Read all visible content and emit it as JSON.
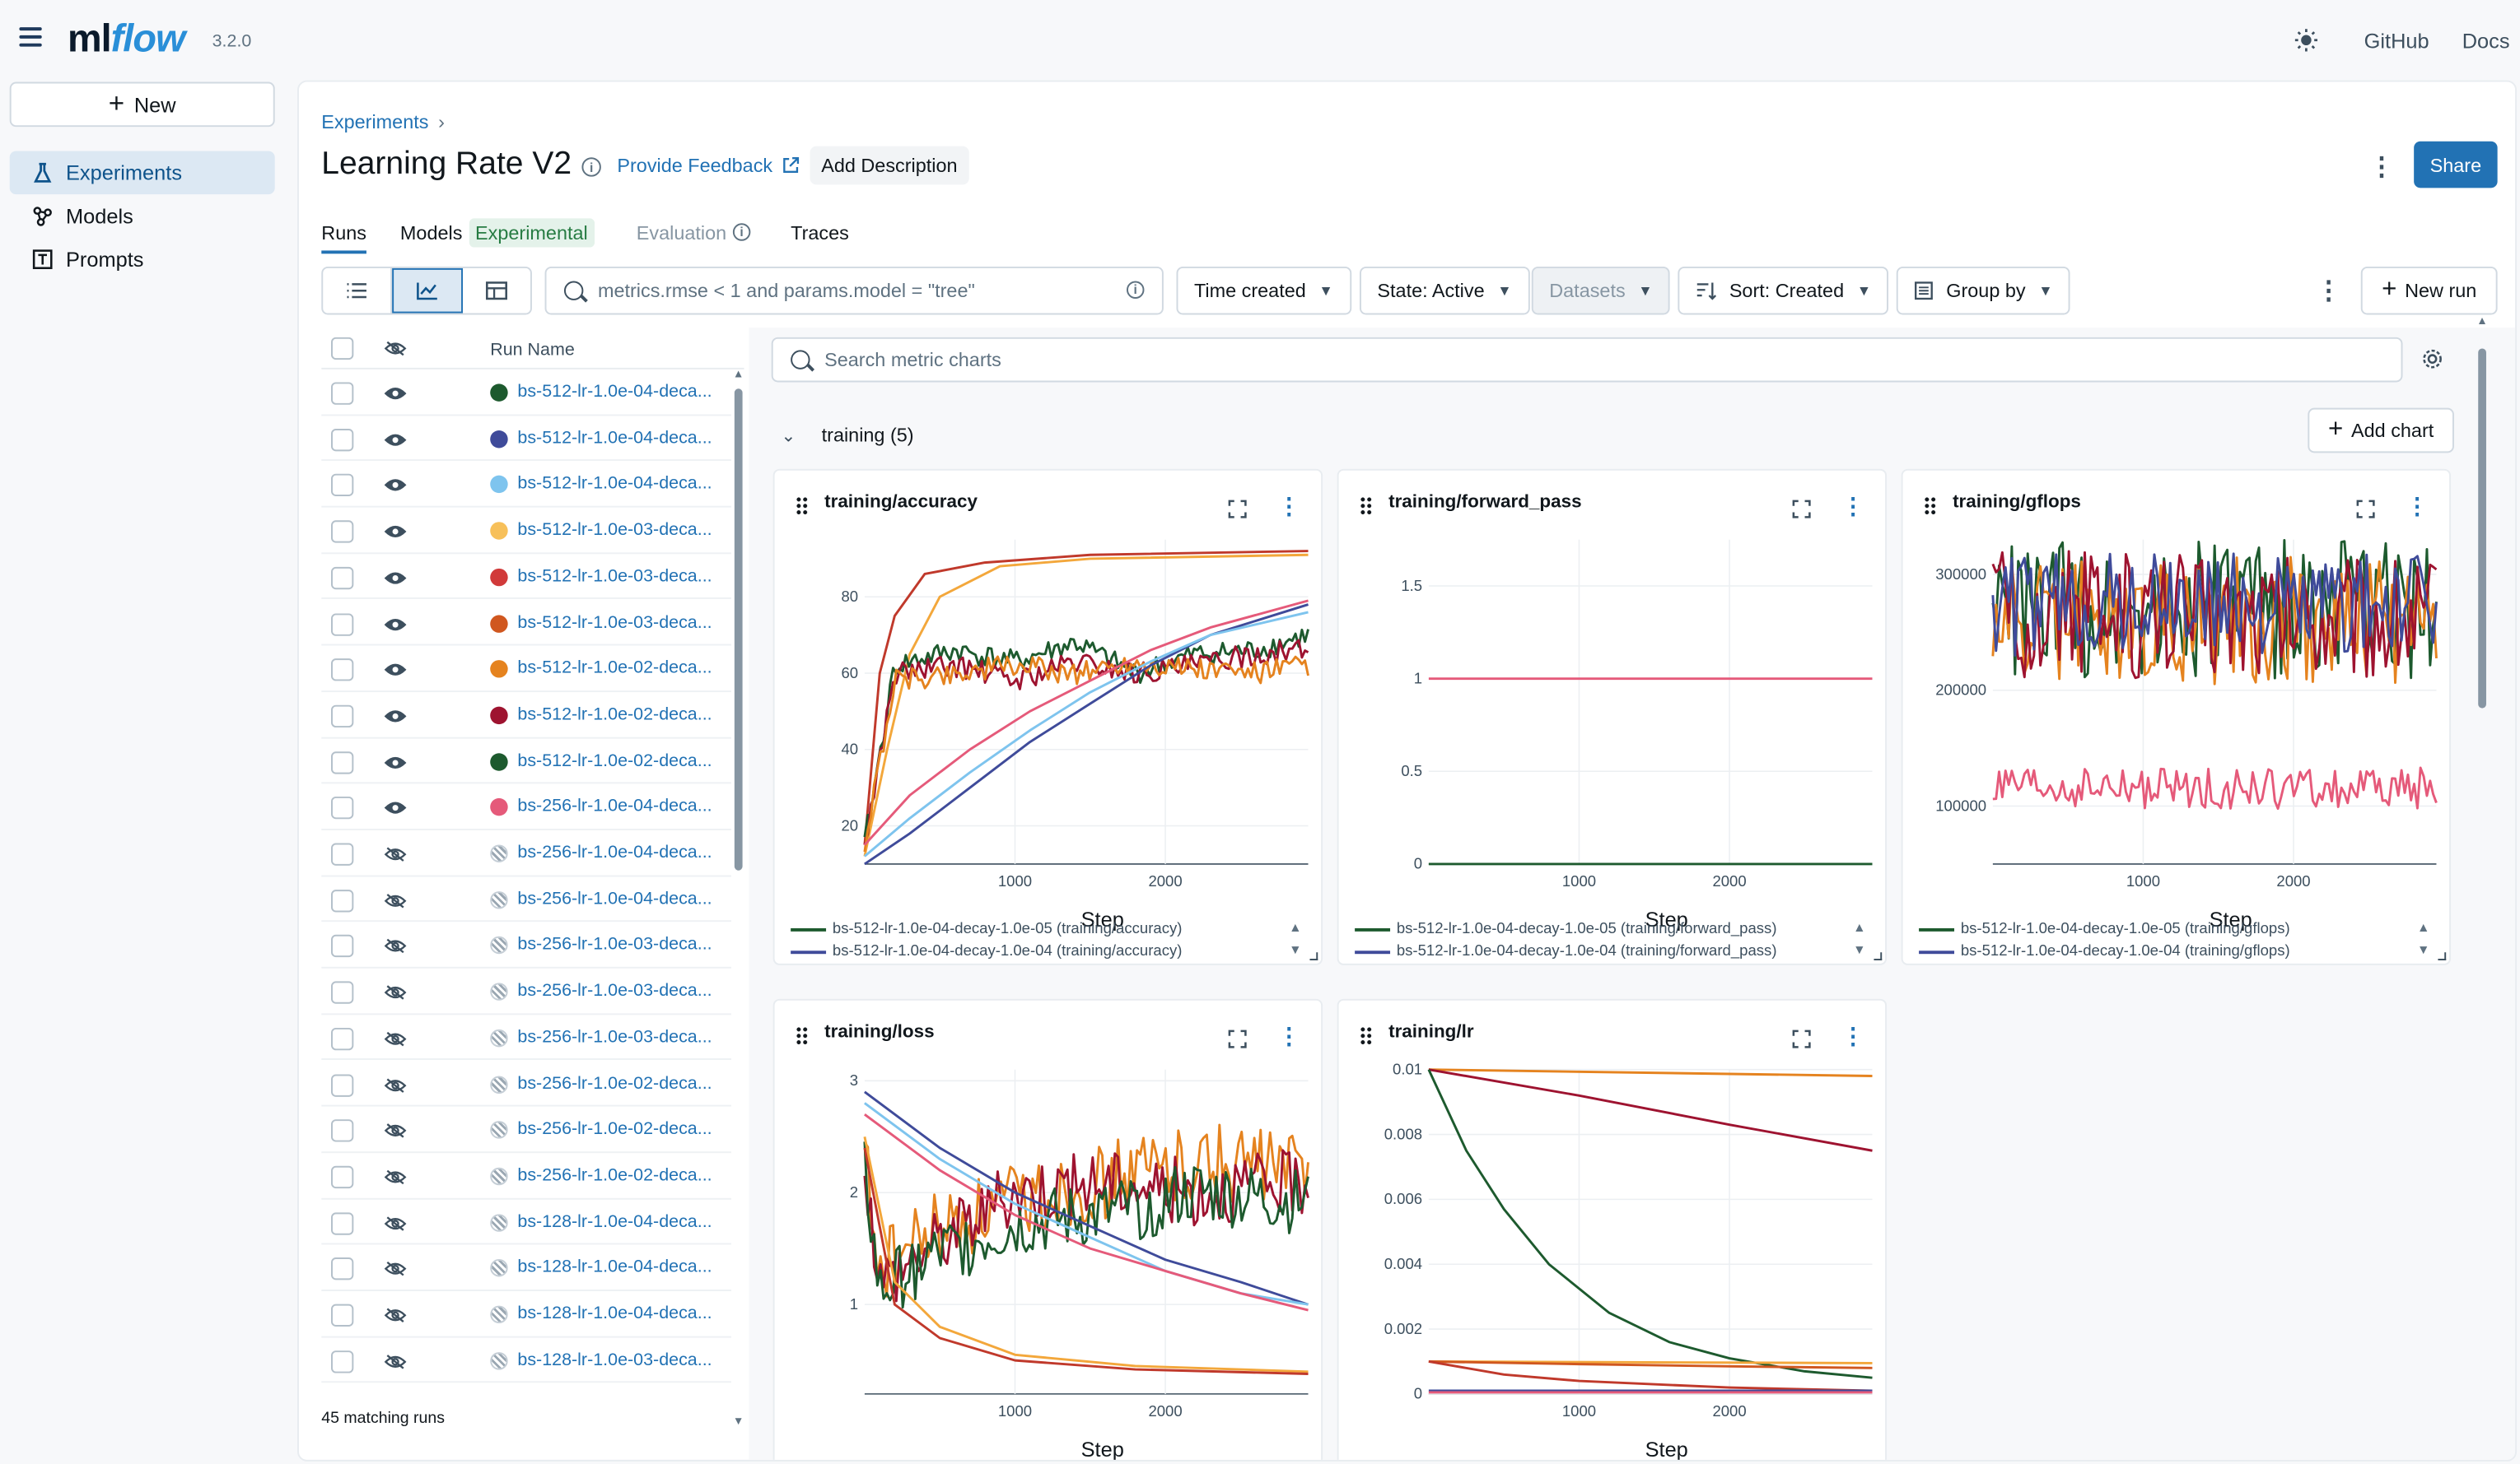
{
  "app": {
    "logo_prefix": "ml",
    "logo_suffix": "flow",
    "version": "3.2.0",
    "links": [
      "GitHub",
      "Docs"
    ]
  },
  "sidebar": {
    "new_label": "New",
    "items": [
      {
        "label": "Experiments",
        "icon": "beaker-icon",
        "active": true
      },
      {
        "label": "Models",
        "icon": "models-icon",
        "active": false
      },
      {
        "label": "Prompts",
        "icon": "prompts-icon",
        "active": false
      }
    ]
  },
  "header": {
    "breadcrumb": "Experiments",
    "breadcrumb_sep": "›",
    "title": "Learning Rate V2",
    "feedback": "Provide Feedback",
    "add_description": "Add Description",
    "share": "Share"
  },
  "tabs": [
    {
      "label": "Runs",
      "active": true
    },
    {
      "label": "Models",
      "badge": "Experimental"
    },
    {
      "label": "Evaluation",
      "muted": true
    },
    {
      "label": "Traces"
    }
  ],
  "toolbar": {
    "search_value": "metrics.rmse < 1 and params.model = \"tree\"",
    "time_created": "Time created",
    "state": "State: Active",
    "datasets": "Datasets",
    "sort": "Sort: Created",
    "group_by": "Group by",
    "new_run": "New run"
  },
  "runs": {
    "header": "Run Name",
    "matching": "45 matching runs",
    "rows": [
      {
        "name": "bs-512-lr-1.0e-04-deca...",
        "color": "#1d5a2e",
        "visible": true
      },
      {
        "name": "bs-512-lr-1.0e-04-deca...",
        "color": "#3f4b9a",
        "visible": true
      },
      {
        "name": "bs-512-lr-1.0e-04-deca...",
        "color": "#7ec4ee",
        "visible": true
      },
      {
        "name": "bs-512-lr-1.0e-03-deca...",
        "color": "#f7c05a",
        "visible": true
      },
      {
        "name": "bs-512-lr-1.0e-03-deca...",
        "color": "#d13a3a",
        "visible": true
      },
      {
        "name": "bs-512-lr-1.0e-03-deca...",
        "color": "#d0571f",
        "visible": true
      },
      {
        "name": "bs-512-lr-1.0e-02-deca...",
        "color": "#e5831f",
        "visible": true
      },
      {
        "name": "bs-512-lr-1.0e-02-deca...",
        "color": "#9e1330",
        "visible": true
      },
      {
        "name": "bs-512-lr-1.0e-02-deca...",
        "color": "#1d5a2e",
        "visible": true
      },
      {
        "name": "bs-256-lr-1.0e-04-deca...",
        "color": "#e55a7a",
        "visible": true
      },
      {
        "name": "bs-256-lr-1.0e-04-deca...",
        "visible": false
      },
      {
        "name": "bs-256-lr-1.0e-04-deca...",
        "visible": false
      },
      {
        "name": "bs-256-lr-1.0e-03-deca...",
        "visible": false
      },
      {
        "name": "bs-256-lr-1.0e-03-deca...",
        "visible": false
      },
      {
        "name": "bs-256-lr-1.0e-03-deca...",
        "visible": false
      },
      {
        "name": "bs-256-lr-1.0e-02-deca...",
        "visible": false
      },
      {
        "name": "bs-256-lr-1.0e-02-deca...",
        "visible": false
      },
      {
        "name": "bs-256-lr-1.0e-02-deca...",
        "visible": false
      },
      {
        "name": "bs-128-lr-1.0e-04-deca...",
        "visible": false
      },
      {
        "name": "bs-128-lr-1.0e-04-deca...",
        "visible": false
      },
      {
        "name": "bs-128-lr-1.0e-04-deca...",
        "visible": false
      },
      {
        "name": "bs-128-lr-1.0e-03-deca...",
        "visible": false
      }
    ]
  },
  "charts_panel": {
    "search_placeholder": "Search metric charts",
    "section": "training (5)",
    "add_chart": "Add chart"
  },
  "chart_data": [
    {
      "type": "line",
      "title": "training/accuracy",
      "xlabel": "Step",
      "xlim": [
        0,
        2950
      ],
      "ylim": [
        10,
        95
      ],
      "xticks": [
        1000,
        2000
      ],
      "yticks": [
        20,
        40,
        60,
        80
      ],
      "legend": [
        "bs-512-lr-1.0e-04-decay-1.0e-05 (training/accuracy)",
        "bs-512-lr-1.0e-04-decay-1.0e-04 (training/accuracy)"
      ],
      "series": [
        {
          "color": "#c0392b",
          "x": [
            0,
            100,
            200,
            400,
            800,
            1500,
            2950
          ],
          "y": [
            15,
            60,
            75,
            86,
            89,
            91,
            92
          ]
        },
        {
          "color": "#f3a73b",
          "x": [
            0,
            150,
            300,
            500,
            900,
            1500,
            2950
          ],
          "y": [
            12,
            40,
            65,
            80,
            88,
            90,
            91
          ]
        },
        {
          "color": "#1d5a2e",
          "x": [
            0,
            200,
            600,
            1000,
            1400,
            1800,
            2200,
            2600,
            2950
          ],
          "y": [
            15,
            62,
            66,
            63,
            68,
            60,
            65,
            66,
            70
          ],
          "noise": 3
        },
        {
          "color": "#9e1330",
          "x": [
            0,
            200,
            600,
            1000,
            1400,
            1800,
            2200,
            2600,
            2950
          ],
          "y": [
            15,
            60,
            62,
            58,
            63,
            60,
            62,
            65,
            66
          ],
          "noise": 3
        },
        {
          "color": "#e5831f",
          "x": [
            0,
            200,
            600,
            1000,
            1400,
            1800,
            2200,
            2600,
            2950
          ],
          "y": [
            15,
            58,
            60,
            62,
            60,
            63,
            61,
            60,
            62
          ],
          "noise": 3
        },
        {
          "color": "#3f4b9a",
          "x": [
            0,
            300,
            700,
            1100,
            1500,
            1900,
            2300,
            2950
          ],
          "y": [
            10,
            18,
            30,
            42,
            52,
            62,
            70,
            78
          ]
        },
        {
          "color": "#7ec4ee",
          "x": [
            0,
            300,
            700,
            1100,
            1500,
            1900,
            2300,
            2950
          ],
          "y": [
            12,
            22,
            34,
            45,
            55,
            63,
            70,
            76
          ]
        },
        {
          "color": "#e55a7a",
          "x": [
            0,
            300,
            700,
            1100,
            1500,
            1900,
            2300,
            2950
          ],
          "y": [
            15,
            28,
            40,
            50,
            58,
            66,
            72,
            79
          ]
        }
      ]
    },
    {
      "type": "line",
      "title": "training/forward_pass",
      "xlabel": "Step",
      "xlim": [
        0,
        2950
      ],
      "ylim": [
        0,
        1.75
      ],
      "xticks": [
        1000,
        2000
      ],
      "yticks": [
        0,
        0.5,
        1,
        1.5
      ],
      "legend": [
        "bs-512-lr-1.0e-04-decay-1.0e-05 (training/forward_pass)",
        "bs-512-lr-1.0e-04-decay-1.0e-04 (training/forward_pass)"
      ],
      "series": [
        {
          "color": "#1d5a2e",
          "x": [
            0,
            2950
          ],
          "y": [
            0,
            0
          ]
        },
        {
          "color": "#e55a7a",
          "x": [
            0,
            2950
          ],
          "y": [
            1,
            1
          ]
        }
      ]
    },
    {
      "type": "line",
      "title": "training/gflops",
      "xlabel": "Step",
      "xlim": [
        0,
        2950
      ],
      "ylim": [
        50000,
        330000
      ],
      "xticks": [
        1000,
        2000
      ],
      "yticks": [
        100000,
        200000,
        300000
      ],
      "legend": [
        "bs-512-lr-1.0e-04-decay-1.0e-05 (training/gflops)",
        "bs-512-lr-1.0e-04-decay-1.0e-04 (training/gflops)"
      ],
      "series": [
        {
          "color": "#1d5a2e",
          "x": [
            0,
            2950
          ],
          "y": [
            270000,
            270000
          ],
          "noise": 60000
        },
        {
          "color": "#e5831f",
          "x": [
            0,
            2950
          ],
          "y": [
            260000,
            260000
          ],
          "noise": 55000
        },
        {
          "color": "#9e1330",
          "x": [
            0,
            2950
          ],
          "y": [
            265000,
            265000
          ],
          "noise": 55000
        },
        {
          "color": "#3f4b9a",
          "x": [
            0,
            2950
          ],
          "y": [
            275000,
            275000
          ],
          "noise": 45000
        },
        {
          "color": "#e55a7a",
          "x": [
            0,
            2950
          ],
          "y": [
            115000,
            115000
          ],
          "noise": 18000
        }
      ]
    },
    {
      "type": "line",
      "title": "training/loss",
      "xlabel": "Step",
      "xlim": [
        0,
        2950
      ],
      "ylim": [
        0.2,
        3.1
      ],
      "xticks": [
        1000,
        2000
      ],
      "yticks": [
        1,
        2,
        3
      ],
      "series": [
        {
          "color": "#e5831f",
          "x": [
            0,
            100,
            400,
            1000,
            1600,
            2200,
            2950
          ],
          "y": [
            2.4,
            1.3,
            1.6,
            1.9,
            2.1,
            2.3,
            2.2
          ],
          "noise": 0.35
        },
        {
          "color": "#9e1330",
          "x": [
            0,
            100,
            400,
            1000,
            1600,
            2200,
            2950
          ],
          "y": [
            2.3,
            1.2,
            1.5,
            2.0,
            2.1,
            2.0,
            2.1
          ],
          "noise": 0.3
        },
        {
          "color": "#1d5a2e",
          "x": [
            0,
            100,
            400,
            1000,
            1600,
            2200,
            2950
          ],
          "y": [
            2.2,
            1.1,
            1.4,
            1.7,
            1.8,
            2.0,
            1.9
          ],
          "noise": 0.3
        },
        {
          "color": "#3f4b9a",
          "x": [
            0,
            500,
            1000,
            1500,
            2000,
            2500,
            2950
          ],
          "y": [
            2.9,
            2.4,
            2.0,
            1.7,
            1.4,
            1.2,
            1.0
          ]
        },
        {
          "color": "#7ec4ee",
          "x": [
            0,
            500,
            1000,
            1500,
            2000,
            2500,
            2950
          ],
          "y": [
            2.8,
            2.3,
            1.9,
            1.6,
            1.3,
            1.1,
            1.0
          ]
        },
        {
          "color": "#e55a7a",
          "x": [
            0,
            500,
            1000,
            1500,
            2000,
            2500,
            2950
          ],
          "y": [
            2.7,
            2.2,
            1.8,
            1.5,
            1.3,
            1.1,
            0.95
          ]
        },
        {
          "color": "#f3a73b",
          "x": [
            0,
            200,
            500,
            1000,
            1800,
            2950
          ],
          "y": [
            2.5,
            1.2,
            0.8,
            0.55,
            0.45,
            0.4
          ]
        },
        {
          "color": "#c0392b",
          "x": [
            0,
            200,
            500,
            1000,
            1800,
            2950
          ],
          "y": [
            2.4,
            1.0,
            0.7,
            0.5,
            0.42,
            0.38
          ]
        }
      ]
    },
    {
      "type": "line",
      "title": "training/lr",
      "xlabel": "Step",
      "xlim": [
        0,
        2950
      ],
      "ylim": [
        0,
        0.01
      ],
      "xticks": [
        1000,
        2000
      ],
      "yticks": [
        0,
        0.002,
        0.004,
        0.006,
        0.008,
        0.01
      ],
      "series": [
        {
          "color": "#e5831f",
          "x": [
            0,
            2950
          ],
          "y": [
            0.01,
            0.0098
          ]
        },
        {
          "color": "#9e1330",
          "x": [
            0,
            1000,
            2000,
            2950
          ],
          "y": [
            0.01,
            0.0092,
            0.0083,
            0.0075
          ]
        },
        {
          "color": "#1d5a2e",
          "x": [
            0,
            250,
            500,
            800,
            1200,
            1600,
            2000,
            2500,
            2950
          ],
          "y": [
            0.01,
            0.0075,
            0.0057,
            0.004,
            0.0025,
            0.0016,
            0.0011,
            0.0007,
            0.0005
          ]
        },
        {
          "color": "#f3a73b",
          "x": [
            0,
            2950
          ],
          "y": [
            0.001,
            0.00095
          ]
        },
        {
          "color": "#d0571f",
          "x": [
            0,
            1000,
            2000,
            2950
          ],
          "y": [
            0.001,
            0.00092,
            0.00085,
            0.0008
          ]
        },
        {
          "color": "#c0392b",
          "x": [
            0,
            500,
            1000,
            2000,
            2950
          ],
          "y": [
            0.001,
            0.0006,
            0.0004,
            0.0002,
            0.0001
          ]
        },
        {
          "color": "#3f4b9a",
          "x": [
            0,
            2950
          ],
          "y": [
            0.0001,
            0.0001
          ]
        },
        {
          "color": "#e55a7a",
          "x": [
            0,
            2950
          ],
          "y": [
            5e-05,
            5e-05
          ]
        }
      ]
    }
  ]
}
